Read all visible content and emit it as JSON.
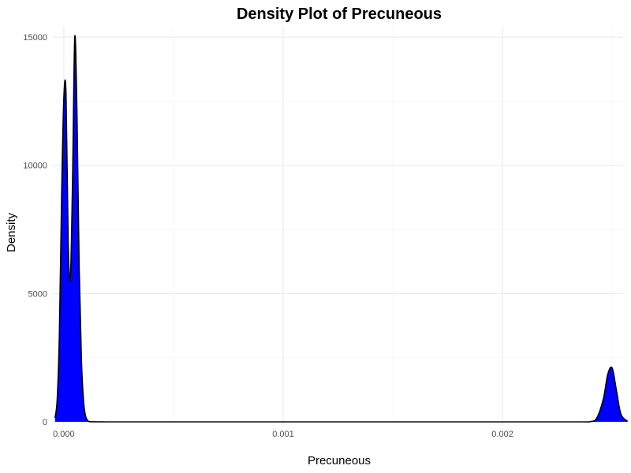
{
  "chart_data": {
    "type": "area",
    "title": "Density Plot of Precuneous",
    "xlabel": "Precuneous",
    "ylabel": "Density",
    "xlim": [
      -5e-05,
      0.00255
    ],
    "ylim": [
      -150,
      15400
    ],
    "x_ticks": [
      0.0,
      0.001,
      0.002
    ],
    "x_tick_labels": [
      "0.000",
      "0.001",
      "0.002"
    ],
    "y_ticks": [
      0,
      5000,
      10000,
      15000
    ],
    "y_tick_labels": [
      "0",
      "5000",
      "10000",
      "15000"
    ],
    "grid": true,
    "legend": "none",
    "fill_color": "#0000ff",
    "line_color": "#000000",
    "series": [
      {
        "x": [
          -4e-05,
          -3e-05,
          -2e-05,
          -1e-05,
          0.0,
          1e-05,
          2e-05,
          3e-05,
          4e-05,
          5e-05,
          6e-05,
          7e-05,
          8e-05,
          9e-05,
          0.0001,
          0.00011,
          0.00012,
          0.0002,
          0.0005,
          0.001,
          0.0015,
          0.002,
          0.00235,
          0.0024,
          0.00243,
          0.00246,
          0.00248,
          0.0025,
          0.00252,
          0.00254,
          0.00257
        ],
        "y": [
          150,
          900,
          3500,
          8800,
          12600,
          12800,
          7000,
          5600,
          9500,
          15000,
          12000,
          6000,
          2500,
          800,
          200,
          50,
          10,
          0,
          0,
          0,
          0,
          0,
          0,
          10,
          150,
          900,
          1850,
          2100,
          1200,
          300,
          20
        ]
      }
    ]
  }
}
